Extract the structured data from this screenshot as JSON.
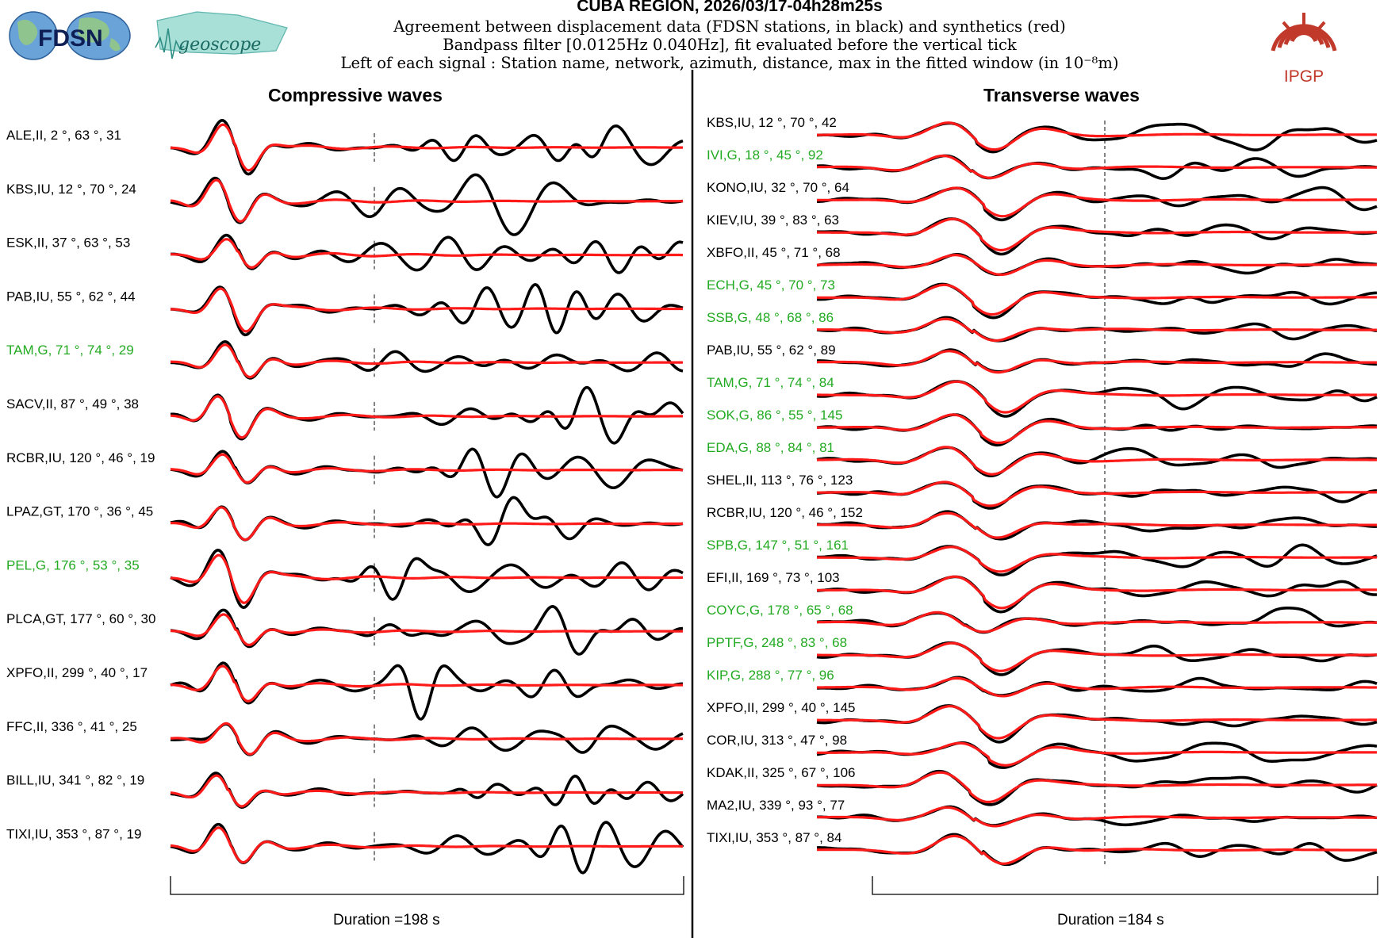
{
  "header": {
    "title": "CUBA REGION, 2026/03/17-04h28m25s",
    "line1": "Agreement between displacement data (FDSN stations, in black) and synthetics (red)",
    "line2": "Bandpass filter [0.0125Hz 0.040Hz], fit evaluated before the vertical tick",
    "line3": "Left of each signal : Station name, network, azimuth, distance, max in the fitted window (in 10⁻⁸m)"
  },
  "logos": {
    "left1": "FDSN",
    "left2": "geoscope",
    "right": "IPGP"
  },
  "colors": {
    "data": "#000000",
    "synthetic": "#ff1a1a",
    "highlight_label": "#22aa22",
    "label": "#000000"
  },
  "chart_data": [
    {
      "type": "line",
      "title": "Compressive waves",
      "duration_label": "Duration =198 s",
      "duration_s": 198,
      "series": [
        "data",
        "synthetics"
      ],
      "stations": [
        {
          "label": "ALE,II, 2 °, 63 °, 31",
          "station": "ALE",
          "network": "II",
          "azimuth": 2,
          "distance": 63,
          "max": 31,
          "highlight": false
        },
        {
          "label": "KBS,IU, 12 °, 70 °, 24",
          "station": "KBS",
          "network": "IU",
          "azimuth": 12,
          "distance": 70,
          "max": 24,
          "highlight": false
        },
        {
          "label": "ESK,II, 37 °, 63 °, 53",
          "station": "ESK",
          "network": "II",
          "azimuth": 37,
          "distance": 63,
          "max": 53,
          "highlight": false
        },
        {
          "label": "PAB,IU, 55 °, 62 °, 44",
          "station": "PAB",
          "network": "IU",
          "azimuth": 55,
          "distance": 62,
          "max": 44,
          "highlight": false
        },
        {
          "label": "TAM,G, 71 °, 74 °, 29",
          "station": "TAM",
          "network": "G",
          "azimuth": 71,
          "distance": 74,
          "max": 29,
          "highlight": true
        },
        {
          "label": "SACV,II, 87 °, 49 °, 38",
          "station": "SACV",
          "network": "II",
          "azimuth": 87,
          "distance": 49,
          "max": 38,
          "highlight": false
        },
        {
          "label": "RCBR,IU, 120 °, 46 °, 19",
          "station": "RCBR",
          "network": "IU",
          "azimuth": 120,
          "distance": 46,
          "max": 19,
          "highlight": false
        },
        {
          "label": "LPAZ,GT, 170 °, 36 °, 45",
          "station": "LPAZ",
          "network": "GT",
          "azimuth": 170,
          "distance": 36,
          "max": 45,
          "highlight": false
        },
        {
          "label": "PEL,G, 176 °, 53 °, 35",
          "station": "PEL",
          "network": "G",
          "azimuth": 176,
          "distance": 53,
          "max": 35,
          "highlight": true
        },
        {
          "label": "PLCA,GT, 177 °, 60 °, 30",
          "station": "PLCA",
          "network": "GT",
          "azimuth": 177,
          "distance": 60,
          "max": 30,
          "highlight": false
        },
        {
          "label": "XPFO,II, 299 °, 40 °, 17",
          "station": "XPFO",
          "network": "II",
          "azimuth": 299,
          "distance": 40,
          "max": 17,
          "highlight": false
        },
        {
          "label": "FFC,II, 336 °, 41 °, 25",
          "station": "FFC",
          "network": "II",
          "azimuth": 336,
          "distance": 41,
          "max": 25,
          "highlight": false
        },
        {
          "label": "BILL,IU, 341 °, 82 °, 19",
          "station": "BILL",
          "network": "IU",
          "azimuth": 341,
          "distance": 82,
          "max": 19,
          "highlight": false
        },
        {
          "label": "TIXI,IU, 353 °, 87 °, 19",
          "station": "TIXI",
          "network": "IU",
          "azimuth": 353,
          "distance": 87,
          "max": 19,
          "highlight": false
        }
      ]
    },
    {
      "type": "line",
      "title": "Transverse waves",
      "duration_label": "Duration =184 s",
      "duration_s": 184,
      "series": [
        "data",
        "synthetics"
      ],
      "stations": [
        {
          "label": "KBS,IU, 12 °, 70 °, 42",
          "station": "KBS",
          "network": "IU",
          "azimuth": 12,
          "distance": 70,
          "max": 42,
          "highlight": false
        },
        {
          "label": "IVI,G, 18 °, 45 °, 92",
          "station": "IVI",
          "network": "G",
          "azimuth": 18,
          "distance": 45,
          "max": 92,
          "highlight": true
        },
        {
          "label": "KONO,IU, 32 °, 70 °, 64",
          "station": "KONO",
          "network": "IU",
          "azimuth": 32,
          "distance": 70,
          "max": 64,
          "highlight": false
        },
        {
          "label": "KIEV,IU, 39 °, 83 °, 63",
          "station": "KIEV",
          "network": "IU",
          "azimuth": 39,
          "distance": 83,
          "max": 63,
          "highlight": false
        },
        {
          "label": "XBFO,II, 45 °, 71 °, 68",
          "station": "XBFO",
          "network": "II",
          "azimuth": 45,
          "distance": 71,
          "max": 68,
          "highlight": false
        },
        {
          "label": "ECH,G, 45 °, 70 °, 73",
          "station": "ECH",
          "network": "G",
          "azimuth": 45,
          "distance": 70,
          "max": 73,
          "highlight": true
        },
        {
          "label": "SSB,G, 48 °, 68 °, 86",
          "station": "SSB",
          "network": "G",
          "azimuth": 48,
          "distance": 68,
          "max": 86,
          "highlight": true
        },
        {
          "label": "PAB,IU, 55 °, 62 °, 89",
          "station": "PAB",
          "network": "IU",
          "azimuth": 55,
          "distance": 62,
          "max": 89,
          "highlight": false
        },
        {
          "label": "TAM,G, 71 °, 74 °, 84",
          "station": "TAM",
          "network": "G",
          "azimuth": 71,
          "distance": 74,
          "max": 84,
          "highlight": true
        },
        {
          "label": "SOK,G, 86 °, 55 °, 145",
          "station": "SOK",
          "network": "G",
          "azimuth": 86,
          "distance": 55,
          "max": 145,
          "highlight": true
        },
        {
          "label": "EDA,G, 88 °, 84 °, 81",
          "station": "EDA",
          "network": "G",
          "azimuth": 88,
          "distance": 84,
          "max": 81,
          "highlight": true
        },
        {
          "label": "SHEL,II, 113 °, 76 °, 123",
          "station": "SHEL",
          "network": "II",
          "azimuth": 113,
          "distance": 76,
          "max": 123,
          "highlight": false
        },
        {
          "label": "RCBR,IU, 120 °, 46 °, 152",
          "station": "RCBR",
          "network": "IU",
          "azimuth": 120,
          "distance": 46,
          "max": 152,
          "highlight": false
        },
        {
          "label": "SPB,G, 147 °, 51 °, 161",
          "station": "SPB",
          "network": "G",
          "azimuth": 147,
          "distance": 51,
          "max": 161,
          "highlight": true
        },
        {
          "label": "EFI,II, 169 °, 73 °, 103",
          "station": "EFI",
          "network": "II",
          "azimuth": 169,
          "distance": 73,
          "max": 103,
          "highlight": false
        },
        {
          "label": "COYC,G, 178 °, 65 °, 68",
          "station": "COYC",
          "network": "G",
          "azimuth": 178,
          "distance": 65,
          "max": 68,
          "highlight": true
        },
        {
          "label": "PPTF,G, 248 °, 83 °, 68",
          "station": "PPTF",
          "network": "G",
          "azimuth": 248,
          "distance": 83,
          "max": 68,
          "highlight": true
        },
        {
          "label": "KIP,G, 288 °, 77 °, 96",
          "station": "KIP",
          "network": "G",
          "azimuth": 288,
          "distance": 77,
          "max": 96,
          "highlight": true
        },
        {
          "label": "XPFO,II, 299 °, 40 °, 145",
          "station": "XPFO",
          "network": "II",
          "azimuth": 299,
          "distance": 40,
          "max": 145,
          "highlight": false
        },
        {
          "label": "COR,IU, 313 °, 47 °, 98",
          "station": "COR",
          "network": "IU",
          "azimuth": 313,
          "distance": 47,
          "max": 98,
          "highlight": false
        },
        {
          "label": "KDAK,II, 325 °, 67 °, 106",
          "station": "KDAK",
          "network": "II",
          "azimuth": 325,
          "distance": 67,
          "max": 106,
          "highlight": false
        },
        {
          "label": "MA2,IU, 339 °, 93 °, 77",
          "station": "MA2",
          "network": "IU",
          "azimuth": 339,
          "distance": 93,
          "max": 77,
          "highlight": false
        },
        {
          "label": "TIXI,IU, 353 °, 87 °, 84",
          "station": "TIXI",
          "network": "IU",
          "azimuth": 353,
          "distance": 87,
          "max": 84,
          "highlight": false
        }
      ]
    }
  ]
}
